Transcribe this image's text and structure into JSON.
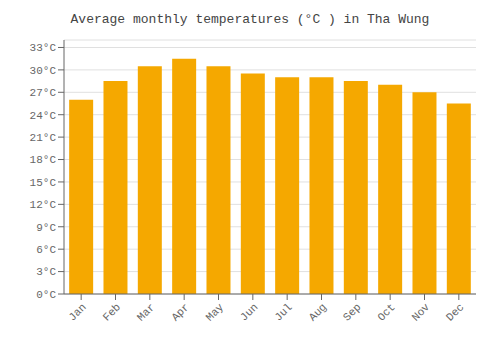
{
  "chart_data": {
    "type": "bar",
    "title": "Average monthly temperatures (°C ) in Tha Wung",
    "categories": [
      "Jan",
      "Feb",
      "Mar",
      "Apr",
      "May",
      "Jun",
      "Jul",
      "Aug",
      "Sep",
      "Oct",
      "Nov",
      "Dec"
    ],
    "values": [
      26.0,
      28.5,
      30.5,
      31.5,
      30.5,
      29.5,
      29.0,
      29.0,
      28.5,
      28.0,
      27.0,
      25.5
    ],
    "color": "#F5A800",
    "ylim": [
      0,
      34
    ],
    "yticks": [
      {
        "value": 0,
        "label": "0°C"
      },
      {
        "value": 3,
        "label": "3°C"
      },
      {
        "value": 6,
        "label": "6°C"
      },
      {
        "value": 9,
        "label": "9°C"
      },
      {
        "value": 12,
        "label": "12°C"
      },
      {
        "value": 15,
        "label": "15°C"
      },
      {
        "value": 18,
        "label": "18°C"
      },
      {
        "value": 21,
        "label": "21°C"
      },
      {
        "value": 24,
        "label": "24°C"
      },
      {
        "value": 27,
        "label": "27°C"
      },
      {
        "value": 30,
        "label": "30°C"
      },
      {
        "value": 33,
        "label": "33°C"
      }
    ],
    "grid": true
  }
}
